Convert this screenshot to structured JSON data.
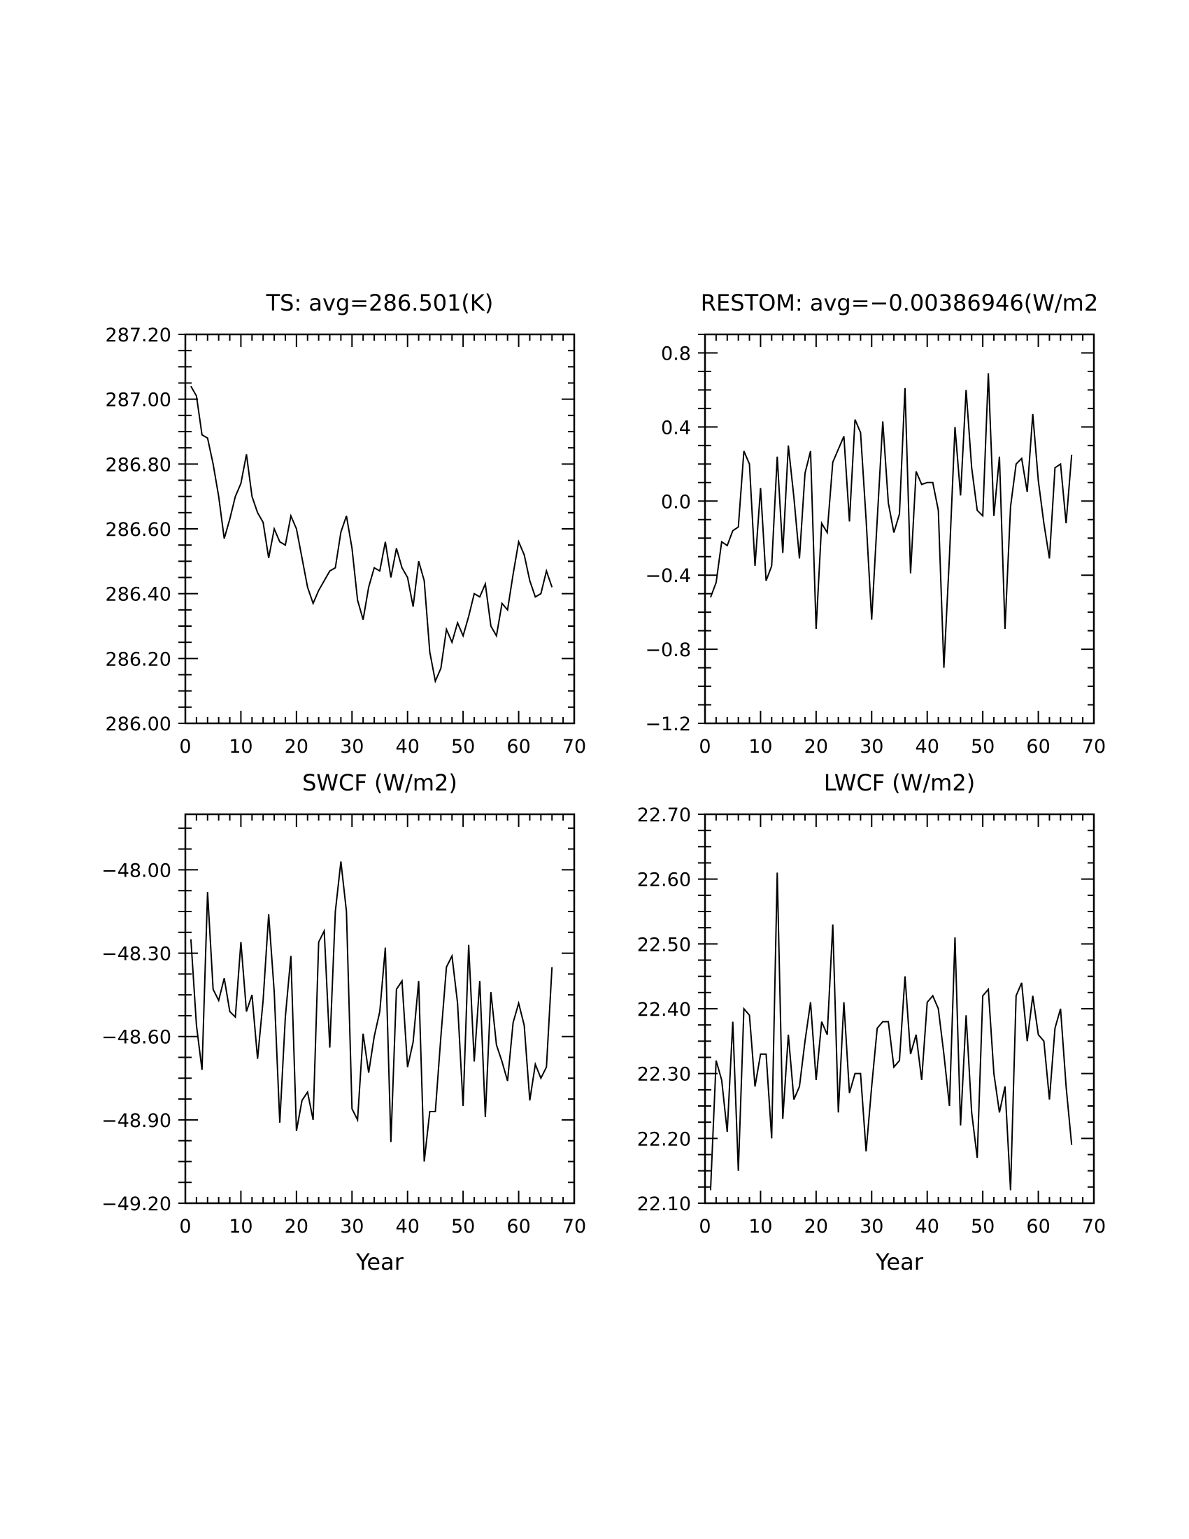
{
  "chart_data": [
    {
      "type": "line",
      "title": "TS: avg=286.501(K)",
      "xlabel": "",
      "ylabel": "",
      "xlim": [
        0,
        70
      ],
      "ylim": [
        286.0,
        287.2
      ],
      "xticks": [
        "0",
        "10",
        "20",
        "30",
        "40",
        "50",
        "60",
        "70"
      ],
      "yticks": [
        "286.00",
        "286.20",
        "286.40",
        "286.60",
        "286.80",
        "287.00",
        "287.20"
      ],
      "x": [
        1,
        2,
        3,
        4,
        5,
        6,
        7,
        8,
        9,
        10,
        11,
        12,
        13,
        14,
        15,
        16,
        17,
        18,
        19,
        20,
        21,
        22,
        23,
        24,
        25,
        26,
        27,
        28,
        29,
        30,
        31,
        32,
        33,
        34,
        35,
        36,
        37,
        38,
        39,
        40,
        41,
        42,
        43,
        44,
        45,
        46,
        47,
        48,
        49,
        50,
        51,
        52,
        53,
        54,
        55,
        56,
        57,
        58,
        59,
        60,
        61,
        62,
        63,
        64,
        65,
        66
      ],
      "values": [
        287.04,
        287.01,
        286.89,
        286.88,
        286.8,
        286.7,
        286.57,
        286.63,
        286.7,
        286.74,
        286.83,
        286.7,
        286.65,
        286.62,
        286.51,
        286.6,
        286.56,
        286.55,
        286.64,
        286.6,
        286.51,
        286.42,
        286.37,
        286.41,
        286.44,
        286.47,
        286.48,
        286.59,
        286.64,
        286.54,
        286.38,
        286.32,
        286.42,
        286.48,
        286.47,
        286.56,
        286.45,
        286.54,
        286.48,
        286.45,
        286.36,
        286.5,
        286.44,
        286.22,
        286.13,
        286.17,
        286.29,
        286.25,
        286.31,
        286.27,
        286.33,
        286.4,
        286.39,
        286.43,
        286.3,
        286.27,
        286.37,
        286.35,
        286.46,
        286.56,
        286.52,
        286.44,
        286.39,
        286.4,
        286.47,
        286.42
      ]
    },
    {
      "type": "line",
      "title": "RESTOM: avg=−0.00386946(W/m2",
      "xlabel": "",
      "ylabel": "",
      "xlim": [
        0,
        70
      ],
      "ylim": [
        -1.2,
        0.9
      ],
      "xticks": [
        "0",
        "10",
        "20",
        "30",
        "40",
        "50",
        "60",
        "70"
      ],
      "yticks": [
        "−1.2",
        "−0.8",
        "−0.4",
        "0.0",
        "0.4",
        "0.8"
      ],
      "x": [
        1,
        2,
        3,
        4,
        5,
        6,
        7,
        8,
        9,
        10,
        11,
        12,
        13,
        14,
        15,
        16,
        17,
        18,
        19,
        20,
        21,
        22,
        23,
        24,
        25,
        26,
        27,
        28,
        29,
        30,
        31,
        32,
        33,
        34,
        35,
        36,
        37,
        38,
        39,
        40,
        41,
        42,
        43,
        44,
        45,
        46,
        47,
        48,
        49,
        50,
        51,
        52,
        53,
        54,
        55,
        56,
        57,
        58,
        59,
        60,
        61,
        62,
        63,
        64,
        65,
        66
      ],
      "values": [
        -0.52,
        -0.44,
        -0.22,
        -0.24,
        -0.16,
        -0.14,
        0.27,
        0.2,
        -0.35,
        0.07,
        -0.43,
        -0.35,
        0.24,
        -0.28,
        0.3,
        0.02,
        -0.31,
        0.15,
        0.27,
        -0.69,
        -0.12,
        -0.17,
        0.21,
        0.28,
        0.35,
        -0.11,
        0.44,
        0.37,
        -0.1,
        -0.64,
        -0.1,
        0.43,
        -0.01,
        -0.17,
        -0.07,
        0.61,
        -0.39,
        0.16,
        0.09,
        0.1,
        0.1,
        -0.05,
        -0.9,
        -0.3,
        0.4,
        0.03,
        0.6,
        0.18,
        -0.05,
        -0.08,
        0.69,
        -0.08,
        0.24,
        -0.69,
        -0.03,
        0.2,
        0.23,
        0.05,
        0.47,
        0.11,
        -0.12,
        -0.31,
        0.18,
        0.2,
        -0.12,
        0.25
      ]
    },
    {
      "type": "line",
      "title": "SWCF (W/m2)",
      "xlabel": "Year",
      "ylabel": "",
      "xlim": [
        0,
        70
      ],
      "ylim": [
        -49.2,
        -47.8
      ],
      "xticks": [
        "0",
        "10",
        "20",
        "30",
        "40",
        "50",
        "60",
        "70"
      ],
      "yticks": [
        "−49.20",
        "−48.90",
        "−48.60",
        "−48.30",
        "−48.00"
      ],
      "x": [
        1,
        2,
        3,
        4,
        5,
        6,
        7,
        8,
        9,
        10,
        11,
        12,
        13,
        14,
        15,
        16,
        17,
        18,
        19,
        20,
        21,
        22,
        23,
        24,
        25,
        26,
        27,
        28,
        29,
        30,
        31,
        32,
        33,
        34,
        35,
        36,
        37,
        38,
        39,
        40,
        41,
        42,
        43,
        44,
        45,
        46,
        47,
        48,
        49,
        50,
        51,
        52,
        53,
        54,
        55,
        56,
        57,
        58,
        59,
        60,
        61,
        62,
        63,
        64,
        65,
        66
      ],
      "values": [
        -48.25,
        -48.56,
        -48.72,
        -48.08,
        -48.43,
        -48.47,
        -48.39,
        -48.51,
        -48.53,
        -48.26,
        -48.51,
        -48.45,
        -48.68,
        -48.47,
        -48.16,
        -48.44,
        -48.91,
        -48.53,
        -48.31,
        -48.94,
        -48.83,
        -48.8,
        -48.9,
        -48.26,
        -48.22,
        -48.64,
        -48.15,
        -47.97,
        -48.15,
        -48.86,
        -48.9,
        -48.59,
        -48.73,
        -48.6,
        -48.51,
        -48.28,
        -48.98,
        -48.43,
        -48.4,
        -48.71,
        -48.62,
        -48.4,
        -49.05,
        -48.87,
        -48.87,
        -48.6,
        -48.35,
        -48.31,
        -48.48,
        -48.85,
        -48.27,
        -48.69,
        -48.4,
        -48.89,
        -48.44,
        -48.63,
        -48.69,
        -48.76,
        -48.55,
        -48.48,
        -48.56,
        -48.83,
        -48.7,
        -48.75,
        -48.71,
        -48.35
      ]
    },
    {
      "type": "line",
      "title": "LWCF (W/m2)",
      "xlabel": "Year",
      "ylabel": "",
      "xlim": [
        0,
        70
      ],
      "ylim": [
        22.1,
        22.7
      ],
      "xticks": [
        "0",
        "10",
        "20",
        "30",
        "40",
        "50",
        "60",
        "70"
      ],
      "yticks": [
        "22.10",
        "22.20",
        "22.30",
        "22.40",
        "22.50",
        "22.60",
        "22.70"
      ],
      "x": [
        1,
        2,
        3,
        4,
        5,
        6,
        7,
        8,
        9,
        10,
        11,
        12,
        13,
        14,
        15,
        16,
        17,
        18,
        19,
        20,
        21,
        22,
        23,
        24,
        25,
        26,
        27,
        28,
        29,
        30,
        31,
        32,
        33,
        34,
        35,
        36,
        37,
        38,
        39,
        40,
        41,
        42,
        43,
        44,
        45,
        46,
        47,
        48,
        49,
        50,
        51,
        52,
        53,
        54,
        55,
        56,
        57,
        58,
        59,
        60,
        61,
        62,
        63,
        64,
        65,
        66
      ],
      "values": [
        22.12,
        22.32,
        22.29,
        22.21,
        22.38,
        22.15,
        22.4,
        22.39,
        22.28,
        22.33,
        22.33,
        22.2,
        22.61,
        22.23,
        22.36,
        22.26,
        22.28,
        22.35,
        22.41,
        22.29,
        22.38,
        22.36,
        22.53,
        22.24,
        22.41,
        22.27,
        22.3,
        22.3,
        22.18,
        22.28,
        22.37,
        22.38,
        22.38,
        22.31,
        22.32,
        22.45,
        22.33,
        22.36,
        22.29,
        22.41,
        22.42,
        22.4,
        22.33,
        22.25,
        22.51,
        22.22,
        22.39,
        22.24,
        22.17,
        22.42,
        22.43,
        22.3,
        22.24,
        22.28,
        22.12,
        22.42,
        22.44,
        22.35,
        22.42,
        22.36,
        22.35,
        22.26,
        22.37,
        22.4,
        22.28,
        22.19
      ]
    }
  ]
}
